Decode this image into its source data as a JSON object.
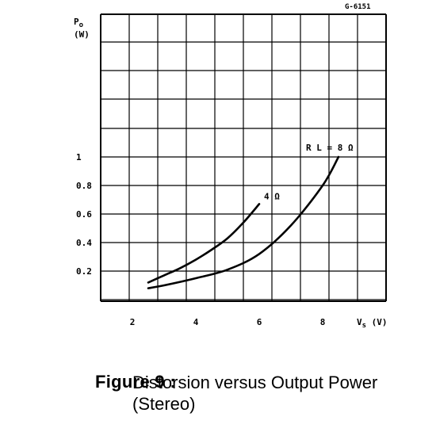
{
  "reference": "G-6151",
  "figure": {
    "label": "Figure 9 :",
    "title_line1": "Distorsion versus Output Power",
    "title_line2": "(Stereo)"
  },
  "chart_data": {
    "type": "line",
    "ylabel_symbol": "P",
    "ylabel_sub": "o",
    "ylabel_unit": "(W)",
    "xlabel": "V",
    "xlabel_sub": "s",
    "xlabel_unit": "(V)",
    "xlim": [
      1,
      10
    ],
    "x_ticks": [
      2,
      4,
      6,
      8
    ],
    "x_tick_labels": [
      "2",
      "4",
      "6",
      "8"
    ],
    "y_tick_values": [
      0.2,
      0.4,
      0.6,
      0.8,
      1
    ],
    "y_tick_labels": [
      "0.2",
      "0.4",
      "0.6",
      "0.8",
      "1"
    ],
    "grid": true,
    "series": [
      {
        "name": "4 Ω",
        "x": [
          2.5,
          3.0,
          3.5,
          4.0,
          4.5,
          5.0,
          5.5,
          6.0
        ],
        "y": [
          0.12,
          0.17,
          0.22,
          0.28,
          0.35,
          0.43,
          0.54,
          0.67
        ]
      },
      {
        "name": "R L = 8 Ω",
        "x": [
          2.5,
          3.0,
          4.0,
          5.0,
          6.0,
          7.0,
          8.0,
          8.5
        ],
        "y": [
          0.08,
          0.1,
          0.15,
          0.21,
          0.32,
          0.52,
          0.8,
          1.0
        ]
      }
    ]
  }
}
